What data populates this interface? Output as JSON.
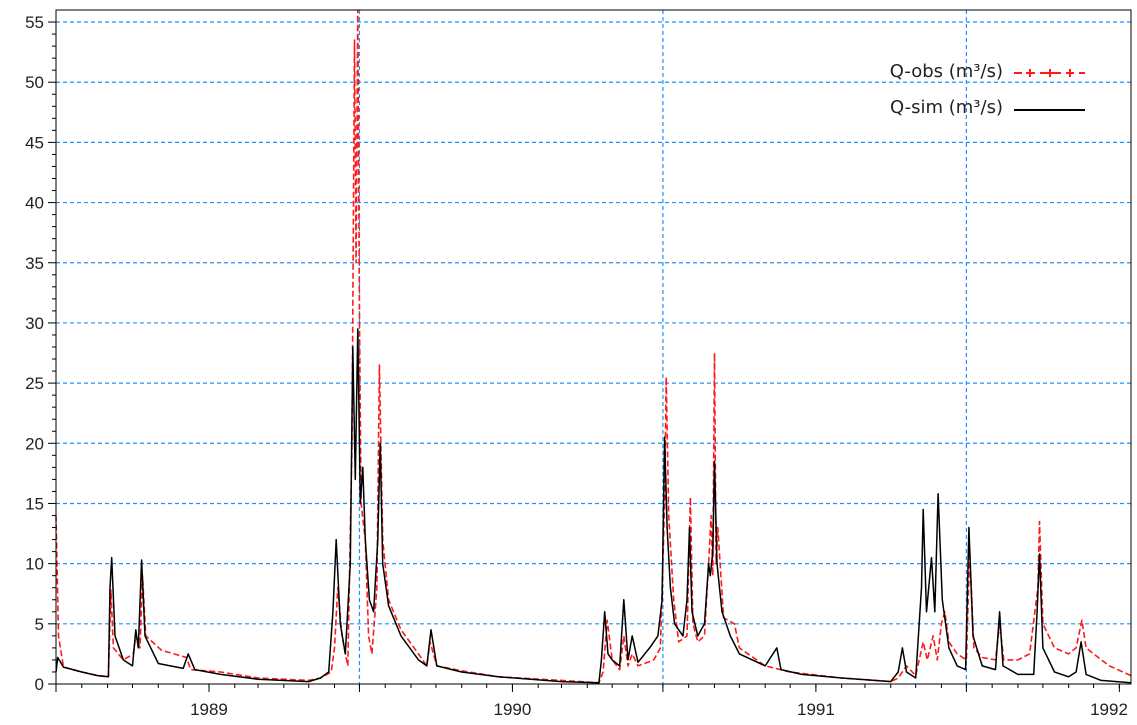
{
  "chart_data": {
    "type": "line",
    "xlim": [
      "1988-07-01",
      "1992-01-15"
    ],
    "ylim": [
      0,
      56
    ],
    "yticks": [
      0,
      5,
      10,
      15,
      20,
      25,
      30,
      35,
      40,
      45,
      50,
      55
    ],
    "xticks": [
      {
        "label": "1989",
        "date": "1989-01-01"
      },
      {
        "label": "1990",
        "date": "1990-01-01"
      },
      {
        "label": "1991",
        "date": "1991-01-01"
      },
      {
        "label": "1992",
        "date": "1992-01-01"
      }
    ],
    "major_gridlines_x": [
      "1989-07-01",
      "1990-07-01",
      "1991-07-01"
    ],
    "grid": true,
    "legend_position": "top-right",
    "series": [
      {
        "name": "Q-obs (m³/s)",
        "color": "#ff1a1a",
        "style": "dashed-with-markers",
        "points": [
          [
            "1988-07-01",
            14.0
          ],
          [
            "1988-07-04",
            4.0
          ],
          [
            "1988-07-10",
            1.4
          ],
          [
            "1988-08-01",
            1.0
          ],
          [
            "1988-08-20",
            0.7
          ],
          [
            "1988-09-02",
            0.6
          ],
          [
            "1988-09-05",
            7.8
          ],
          [
            "1988-09-08",
            3.0
          ],
          [
            "1988-09-20",
            2.0
          ],
          [
            "1988-10-02",
            2.5
          ],
          [
            "1988-10-05",
            4.0
          ],
          [
            "1988-10-10",
            3.0
          ],
          [
            "1988-10-13",
            9.0
          ],
          [
            "1988-10-17",
            4.0
          ],
          [
            "1988-11-05",
            2.8
          ],
          [
            "1988-12-05",
            2.2
          ],
          [
            "1988-12-10",
            1.2
          ],
          [
            "1989-01-15",
            1.0
          ],
          [
            "1989-03-01",
            0.5
          ],
          [
            "1989-05-01",
            0.3
          ],
          [
            "1989-05-15",
            0.5
          ],
          [
            "1989-05-28",
            1.0
          ],
          [
            "1989-06-01",
            3.0
          ],
          [
            "1989-06-05",
            8.0
          ],
          [
            "1989-06-10",
            4.0
          ],
          [
            "1989-06-17",
            1.5
          ],
          [
            "1989-06-22",
            20.0
          ],
          [
            "1989-06-25",
            53.5
          ],
          [
            "1989-06-27",
            35.0
          ],
          [
            "1989-06-29",
            56.0
          ],
          [
            "1989-07-01",
            30.0
          ],
          [
            "1989-07-03",
            15.0
          ],
          [
            "1989-07-08",
            12.0
          ],
          [
            "1989-07-12",
            4.0
          ],
          [
            "1989-07-16",
            2.5
          ],
          [
            "1989-07-22",
            8.0
          ],
          [
            "1989-07-25",
            26.5
          ],
          [
            "1989-07-29",
            12.0
          ],
          [
            "1989-08-05",
            7.0
          ],
          [
            "1989-08-20",
            4.5
          ],
          [
            "1989-09-10",
            2.5
          ],
          [
            "1989-09-20",
            1.5
          ],
          [
            "1989-09-24",
            3.5
          ],
          [
            "1989-10-02",
            1.5
          ],
          [
            "1989-11-01",
            1.1
          ],
          [
            "1989-12-15",
            0.6
          ],
          [
            "1990-03-01",
            0.3
          ],
          [
            "1990-04-15",
            0.1
          ],
          [
            "1990-04-20",
            1.0
          ],
          [
            "1990-04-25",
            5.3
          ],
          [
            "1990-05-01",
            2.0
          ],
          [
            "1990-05-10",
            1.2
          ],
          [
            "1990-05-15",
            4.0
          ],
          [
            "1990-05-20",
            1.5
          ],
          [
            "1990-05-25",
            2.5
          ],
          [
            "1990-06-01",
            1.5
          ],
          [
            "1990-06-20",
            2.0
          ],
          [
            "1990-06-28",
            3.0
          ],
          [
            "1990-07-03",
            15.0
          ],
          [
            "1990-07-05",
            25.5
          ],
          [
            "1990-07-08",
            14.0
          ],
          [
            "1990-07-14",
            7.0
          ],
          [
            "1990-07-20",
            3.5
          ],
          [
            "1990-07-30",
            4.0
          ],
          [
            "1990-08-03",
            15.5
          ],
          [
            "1990-08-06",
            5.0
          ],
          [
            "1990-08-12",
            3.5
          ],
          [
            "1990-08-20",
            4.0
          ],
          [
            "1990-08-25",
            10.0
          ],
          [
            "1990-08-28",
            14.0
          ],
          [
            "1990-08-30",
            9.0
          ],
          [
            "1990-09-01",
            27.5
          ],
          [
            "1990-09-03",
            10.0
          ],
          [
            "1990-09-05",
            13.0
          ],
          [
            "1990-09-12",
            5.5
          ],
          [
            "1990-09-25",
            5.0
          ],
          [
            "1990-10-01",
            3.0
          ],
          [
            "1990-11-01",
            1.5
          ],
          [
            "1990-12-01",
            1.0
          ],
          [
            "1991-02-01",
            0.5
          ],
          [
            "1991-04-01",
            0.2
          ],
          [
            "1991-04-10",
            0.5
          ],
          [
            "1991-04-20",
            1.5
          ],
          [
            "1991-05-01",
            0.7
          ],
          [
            "1991-05-10",
            3.5
          ],
          [
            "1991-05-15",
            2.0
          ],
          [
            "1991-05-22",
            4.0
          ],
          [
            "1991-05-27",
            2.0
          ],
          [
            "1991-06-01",
            5.0
          ],
          [
            "1991-06-05",
            6.0
          ],
          [
            "1991-06-10",
            3.5
          ],
          [
            "1991-06-20",
            2.5
          ],
          [
            "1991-07-01",
            2.0
          ],
          [
            "1991-07-05",
            11.0
          ],
          [
            "1991-07-10",
            3.0
          ],
          [
            "1991-07-20",
            2.2
          ],
          [
            "1991-08-05",
            2.0
          ],
          [
            "1991-08-10",
            5.0
          ],
          [
            "1991-08-15",
            2.0
          ],
          [
            "1991-09-01",
            2.0
          ],
          [
            "1991-09-15",
            2.5
          ],
          [
            "1991-09-25",
            8.0
          ],
          [
            "1991-09-27",
            13.5
          ],
          [
            "1991-10-01",
            5.0
          ],
          [
            "1991-10-15",
            3.0
          ],
          [
            "1991-11-01",
            2.5
          ],
          [
            "1991-11-10",
            3.0
          ],
          [
            "1991-11-17",
            5.3
          ],
          [
            "1991-11-22",
            3.0
          ],
          [
            "1991-12-01",
            2.5
          ],
          [
            "1991-12-20",
            1.5
          ],
          [
            "1992-01-15",
            0.7
          ]
        ]
      },
      {
        "name": "Q-sim (m³/s)",
        "color": "#000000",
        "style": "solid",
        "points": [
          [
            "1988-07-01",
            1.0
          ],
          [
            "1988-07-03",
            2.2
          ],
          [
            "1988-07-10",
            1.4
          ],
          [
            "1988-08-01",
            1.0
          ],
          [
            "1988-08-20",
            0.7
          ],
          [
            "1988-09-02",
            0.6
          ],
          [
            "1988-09-04",
            8.0
          ],
          [
            "1988-09-06",
            10.5
          ],
          [
            "1988-09-10",
            4.0
          ],
          [
            "1988-09-20",
            2.0
          ],
          [
            "1988-10-01",
            1.5
          ],
          [
            "1988-10-05",
            4.5
          ],
          [
            "1988-10-08",
            3.0
          ],
          [
            "1988-10-12",
            10.3
          ],
          [
            "1988-10-16",
            4.0
          ],
          [
            "1988-11-01",
            1.7
          ],
          [
            "1988-12-01",
            1.3
          ],
          [
            "1988-12-07",
            2.5
          ],
          [
            "1988-12-15",
            1.2
          ],
          [
            "1989-01-15",
            0.8
          ],
          [
            "1989-03-01",
            0.4
          ],
          [
            "1989-05-01",
            0.2
          ],
          [
            "1989-05-15",
            0.5
          ],
          [
            "1989-05-25",
            1.0
          ],
          [
            "1989-05-30",
            6.0
          ],
          [
            "1989-06-03",
            12.0
          ],
          [
            "1989-06-08",
            5.0
          ],
          [
            "1989-06-14",
            2.5
          ],
          [
            "1989-06-20",
            10.0
          ],
          [
            "1989-06-23",
            28.0
          ],
          [
            "1989-06-26",
            17.0
          ],
          [
            "1989-06-29",
            29.5
          ],
          [
            "1989-07-02",
            15.0
          ],
          [
            "1989-07-05",
            18.0
          ],
          [
            "1989-07-08",
            12.0
          ],
          [
            "1989-07-13",
            7.0
          ],
          [
            "1989-07-18",
            6.0
          ],
          [
            "1989-07-23",
            12.0
          ],
          [
            "1989-07-26",
            20.0
          ],
          [
            "1989-07-29",
            10.0
          ],
          [
            "1989-08-05",
            6.5
          ],
          [
            "1989-08-20",
            4.0
          ],
          [
            "1989-09-10",
            2.0
          ],
          [
            "1989-09-20",
            1.5
          ],
          [
            "1989-09-25",
            4.5
          ],
          [
            "1989-10-02",
            1.5
          ],
          [
            "1989-11-01",
            1.0
          ],
          [
            "1989-12-15",
            0.6
          ],
          [
            "1990-03-01",
            0.2
          ],
          [
            "1990-04-15",
            0.1
          ],
          [
            "1990-04-18",
            2.0
          ],
          [
            "1990-04-22",
            6.0
          ],
          [
            "1990-04-26",
            2.5
          ],
          [
            "1990-05-01",
            2.0
          ],
          [
            "1990-05-10",
            1.5
          ],
          [
            "1990-05-15",
            7.0
          ],
          [
            "1990-05-20",
            2.0
          ],
          [
            "1990-05-25",
            4.0
          ],
          [
            "1990-06-01",
            1.8
          ],
          [
            "1990-06-15",
            3.0
          ],
          [
            "1990-06-25",
            4.0
          ],
          [
            "1990-06-30",
            7.0
          ],
          [
            "1990-07-03",
            20.5
          ],
          [
            "1990-07-06",
            13.0
          ],
          [
            "1990-07-10",
            8.0
          ],
          [
            "1990-07-15",
            5.0
          ],
          [
            "1990-07-25",
            4.0
          ],
          [
            "1990-07-30",
            7.0
          ],
          [
            "1990-08-02",
            13.0
          ],
          [
            "1990-08-05",
            6.0
          ],
          [
            "1990-08-12",
            4.0
          ],
          [
            "1990-08-20",
            5.0
          ],
          [
            "1990-08-25",
            10.0
          ],
          [
            "1990-08-27",
            9.0
          ],
          [
            "1990-08-30",
            11.0
          ],
          [
            "1990-09-01",
            18.5
          ],
          [
            "1990-09-04",
            10.0
          ],
          [
            "1990-09-10",
            6.0
          ],
          [
            "1990-09-20",
            4.0
          ],
          [
            "1990-10-01",
            2.5
          ],
          [
            "1990-11-01",
            1.5
          ],
          [
            "1990-11-15",
            3.0
          ],
          [
            "1990-11-20",
            1.2
          ],
          [
            "1990-12-15",
            0.8
          ],
          [
            "1991-02-01",
            0.5
          ],
          [
            "1991-04-01",
            0.2
          ],
          [
            "1991-04-10",
            1.0
          ],
          [
            "1991-04-15",
            3.0
          ],
          [
            "1991-04-20",
            1.0
          ],
          [
            "1991-05-01",
            0.5
          ],
          [
            "1991-05-08",
            8.0
          ],
          [
            "1991-05-10",
            14.5
          ],
          [
            "1991-05-14",
            6.0
          ],
          [
            "1991-05-20",
            10.5
          ],
          [
            "1991-05-24",
            6.0
          ],
          [
            "1991-05-28",
            15.8
          ],
          [
            "1991-06-02",
            7.0
          ],
          [
            "1991-06-06",
            5.0
          ],
          [
            "1991-06-10",
            3.0
          ],
          [
            "1991-06-20",
            1.5
          ],
          [
            "1991-06-30",
            1.2
          ],
          [
            "1991-07-04",
            13.0
          ],
          [
            "1991-07-09",
            4.0
          ],
          [
            "1991-07-20",
            1.5
          ],
          [
            "1991-08-05",
            1.2
          ],
          [
            "1991-08-10",
            6.0
          ],
          [
            "1991-08-14",
            1.5
          ],
          [
            "1991-09-01",
            0.8
          ],
          [
            "1991-09-20",
            0.8
          ],
          [
            "1991-09-24",
            6.0
          ],
          [
            "1991-09-27",
            10.8
          ],
          [
            "1991-10-01",
            3.0
          ],
          [
            "1991-10-15",
            1.0
          ],
          [
            "1991-11-01",
            0.6
          ],
          [
            "1991-11-10",
            1.0
          ],
          [
            "1991-11-16",
            3.5
          ],
          [
            "1991-11-22",
            0.8
          ],
          [
            "1991-12-10",
            0.3
          ],
          [
            "1992-01-15",
            0.1
          ]
        ]
      }
    ]
  }
}
